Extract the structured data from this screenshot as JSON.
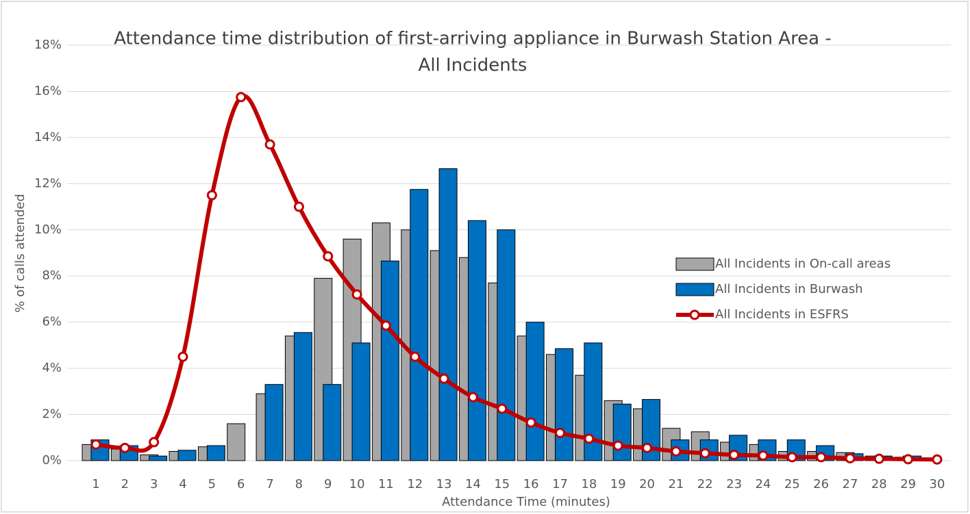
{
  "chart_data": {
    "type": "bar-line",
    "title": [
      "Attendance time distribution of first-arriving appliance in Burwash Station Area -",
      "All Incidents"
    ],
    "x_label": "Attendance Time (minutes)",
    "y_label": "% of calls attended",
    "categories": [
      "1",
      "2",
      "3",
      "4",
      "5",
      "6",
      "7",
      "8",
      "9",
      "10",
      "11",
      "12",
      "13",
      "14",
      "15",
      "16",
      "17",
      "18",
      "19",
      "20",
      "21",
      "22",
      "23",
      "24",
      "25",
      "26",
      "27",
      "28",
      "29",
      "30"
    ],
    "series": [
      {
        "name": "All Incidents in On-call areas",
        "type": "bar",
        "color": "#a6a6a6",
        "values": [
          0.7,
          0.5,
          0.25,
          0.4,
          0.6,
          1.6,
          2.9,
          5.4,
          7.9,
          9.6,
          10.3,
          10.0,
          9.1,
          8.8,
          7.7,
          5.4,
          4.6,
          3.7,
          2.6,
          2.25,
          1.4,
          1.25,
          0.8,
          0.7,
          0.4,
          0.4,
          0.35,
          0.2,
          0.15,
          0.05
        ]
      },
      {
        "name": "All Incidents in Burwash",
        "type": "bar",
        "color": "#0070c0",
        "values": [
          0.9,
          0.65,
          0.2,
          0.45,
          0.65,
          0,
          3.3,
          5.55,
          3.3,
          5.1,
          8.65,
          11.75,
          12.65,
          10.4,
          10.0,
          6.0,
          4.85,
          5.1,
          2.45,
          2.65,
          0.9,
          0.9,
          1.1,
          0.9,
          0.9,
          0.65,
          0.3,
          0.2,
          0.2,
          0
        ]
      },
      {
        "name": "All Incidents in ESFRS",
        "type": "line",
        "color": "#c00000",
        "values": [
          0.7,
          0.55,
          0.8,
          4.5,
          11.5,
          15.75,
          13.7,
          11.0,
          8.85,
          7.2,
          5.85,
          4.5,
          3.55,
          2.75,
          2.25,
          1.65,
          1.2,
          0.95,
          0.65,
          0.55,
          0.4,
          0.32,
          0.25,
          0.22,
          0.15,
          0.15,
          0.1,
          0.08,
          0.06,
          0.05
        ]
      }
    ],
    "ylim": [
      0,
      18
    ],
    "yticks": [
      {
        "value": 0,
        "label": "0%"
      },
      {
        "value": 2,
        "label": "2%"
      },
      {
        "value": 4,
        "label": "4%"
      },
      {
        "value": 6,
        "label": "6%"
      },
      {
        "value": 8,
        "label": "8%"
      },
      {
        "value": 10,
        "label": "10%"
      },
      {
        "value": 12,
        "label": "12%"
      },
      {
        "value": 14,
        "label": "14%"
      },
      {
        "value": 16,
        "label": "16%"
      },
      {
        "value": 18,
        "label": "18%"
      }
    ],
    "grid": true,
    "legend": "right"
  }
}
